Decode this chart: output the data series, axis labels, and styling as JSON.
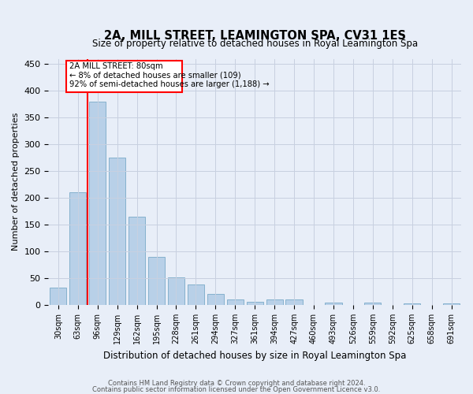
{
  "title": "2A, MILL STREET, LEAMINGTON SPA, CV31 1ES",
  "subtitle": "Size of property relative to detached houses in Royal Leamington Spa",
  "xlabel": "Distribution of detached houses by size in Royal Leamington Spa",
  "ylabel": "Number of detached properties",
  "footnote1": "Contains HM Land Registry data © Crown copyright and database right 2024.",
  "footnote2": "Contains public sector information licensed under the Open Government Licence v3.0.",
  "bar_labels": [
    "30sqm",
    "63sqm",
    "96sqm",
    "129sqm",
    "162sqm",
    "195sqm",
    "228sqm",
    "261sqm",
    "294sqm",
    "327sqm",
    "361sqm",
    "394sqm",
    "427sqm",
    "460sqm",
    "493sqm",
    "526sqm",
    "559sqm",
    "592sqm",
    "625sqm",
    "658sqm",
    "691sqm"
  ],
  "bar_values": [
    32,
    210,
    380,
    275,
    165,
    90,
    52,
    39,
    20,
    11,
    6,
    11,
    10,
    0,
    4,
    0,
    5,
    0,
    3,
    0,
    3
  ],
  "bar_color": "#b8d0e8",
  "bar_edge_color": "#7aaac8",
  "ylim": [
    0,
    460
  ],
  "yticks": [
    0,
    50,
    100,
    150,
    200,
    250,
    300,
    350,
    400,
    450
  ],
  "vline_x": 1.5,
  "annotation_line1": "2A MILL STREET: 80sqm",
  "annotation_line2": "← 8% of detached houses are smaller (109)",
  "annotation_line3": "92% of semi-detached houses are larger (1,188) →",
  "bg_color": "#e8eef8",
  "grid_color": "#c8d0e0"
}
